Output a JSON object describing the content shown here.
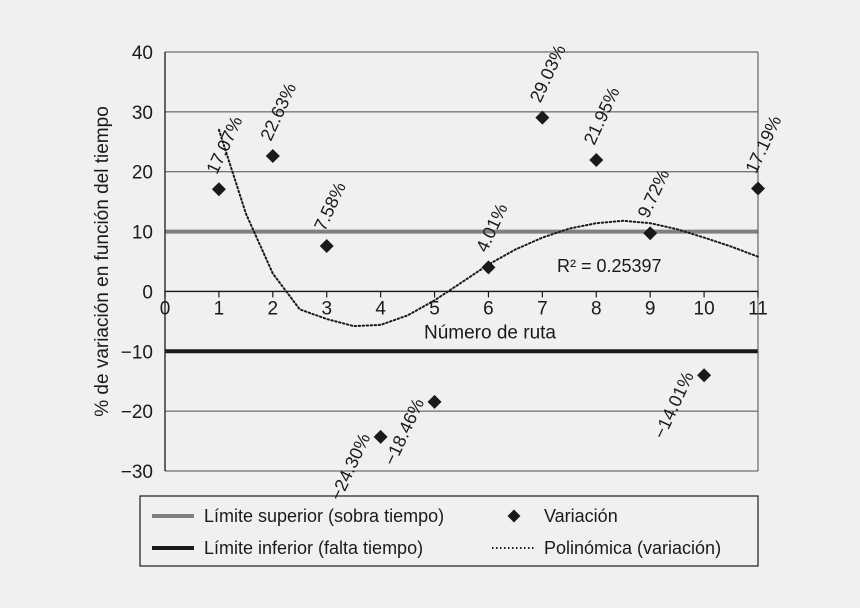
{
  "chart_data": {
    "type": "scatter",
    "xlabel": "Número de ruta",
    "ylabel": "% de variación en función del tiempo",
    "xlim": [
      0,
      11
    ],
    "ylim": [
      -30,
      40
    ],
    "x_ticks": [
      "0",
      "1",
      "2",
      "3",
      "4",
      "5",
      "6",
      "7",
      "8",
      "9",
      "10",
      "11"
    ],
    "y_ticks": [
      "40",
      "30",
      "20",
      "10",
      "0",
      "−10",
      "−20",
      "−30"
    ],
    "grid": true,
    "series": [
      {
        "name": "Variación",
        "marker": "diamond",
        "color": "#1a1a1a",
        "points": [
          {
            "x": 1,
            "y": 17.07,
            "label": "17.07%"
          },
          {
            "x": 2,
            "y": 22.63,
            "label": "22.63%"
          },
          {
            "x": 3,
            "y": 7.58,
            "label": "7.58%"
          },
          {
            "x": 4,
            "y": -24.3,
            "label": "−24.30%"
          },
          {
            "x": 5,
            "y": -18.46,
            "label": "−18.46%"
          },
          {
            "x": 6,
            "y": 4.01,
            "label": "4.01%"
          },
          {
            "x": 7,
            "y": 29.03,
            "label": "29.03%"
          },
          {
            "x": 8,
            "y": 21.95,
            "label": "21.95%"
          },
          {
            "x": 9,
            "y": 9.72,
            "label": "9.72%"
          },
          {
            "x": 10,
            "y": -14.01,
            "label": "−14.01%"
          },
          {
            "x": 11,
            "y": 17.19,
            "label": "17.19%"
          }
        ]
      }
    ],
    "reference_lines": [
      {
        "name": "Límite superior (sobra tiempo)",
        "y": 10,
        "color": "#808080"
      },
      {
        "name": "Límite inferior (falta tiempo)",
        "y": -10,
        "color": "#1a1a1a"
      }
    ],
    "trendline": {
      "name": "Polinómica (variación)",
      "style": "dotted",
      "r2_label": "R² = 0.25397",
      "points": [
        {
          "x": 1,
          "y": 27
        },
        {
          "x": 1.5,
          "y": 13
        },
        {
          "x": 2,
          "y": 3
        },
        {
          "x": 2.5,
          "y": -3
        },
        {
          "x": 3,
          "y": -4.6
        },
        {
          "x": 3.5,
          "y": -5.8
        },
        {
          "x": 4,
          "y": -5.6
        },
        {
          "x": 4.5,
          "y": -4
        },
        {
          "x": 5,
          "y": -1.5
        },
        {
          "x": 5.5,
          "y": 1.5
        },
        {
          "x": 6,
          "y": 4.5
        },
        {
          "x": 6.5,
          "y": 7
        },
        {
          "x": 7,
          "y": 9
        },
        {
          "x": 7.5,
          "y": 10.5
        },
        {
          "x": 8,
          "y": 11.4
        },
        {
          "x": 8.5,
          "y": 11.8
        },
        {
          "x": 9,
          "y": 11.4
        },
        {
          "x": 9.5,
          "y": 10.4
        },
        {
          "x": 10,
          "y": 9
        },
        {
          "x": 10.5,
          "y": 7.5
        },
        {
          "x": 11,
          "y": 5.8
        }
      ]
    },
    "legend": {
      "placement": "bottom",
      "items": [
        {
          "label": "Límite superior (sobra tiempo)",
          "kind": "line",
          "color": "#808080"
        },
        {
          "label": "Variación",
          "kind": "diamond",
          "color": "#1a1a1a"
        },
        {
          "label": "Límite inferior (falta tiempo)",
          "kind": "line",
          "color": "#1a1a1a"
        },
        {
          "label": "Polinómica (variación)",
          "kind": "dotted",
          "color": "#1a1a1a"
        }
      ]
    }
  }
}
